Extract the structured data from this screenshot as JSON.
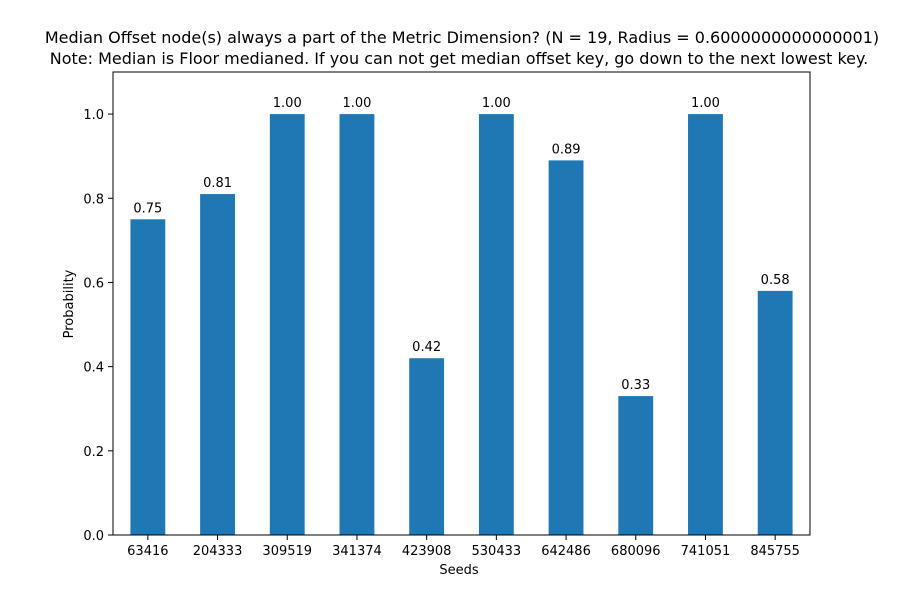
{
  "chart_data": {
    "type": "bar",
    "title": "Median Offset node(s) always a part of the Metric Dimension? (N = 19, Radius = 0.6000000000000001)",
    "subtitle": "Note: Median is Floor medianed. If you can not get median offset key, go down to the next lowest key.",
    "xlabel": "Seeds",
    "ylabel": "Probability",
    "categories": [
      "63416",
      "204333",
      "309519",
      "341374",
      "423908",
      "530433",
      "642486",
      "680096",
      "741051",
      "845755"
    ],
    "values": [
      0.75,
      0.81,
      1.0,
      1.0,
      0.42,
      1.0,
      0.89,
      0.33,
      1.0,
      0.58
    ],
    "value_labels": [
      "0.75",
      "0.81",
      "1.00",
      "1.00",
      "0.42",
      "1.00",
      "0.89",
      "0.33",
      "1.00",
      "0.58"
    ],
    "ylim": [
      0,
      1.1
    ],
    "yticks": [
      0.0,
      0.2,
      0.4,
      0.6,
      0.8,
      1.0
    ],
    "ytick_labels": [
      "0.0",
      "0.2",
      "0.4",
      "0.6",
      "0.8",
      "1.0"
    ],
    "bar_color": "#1f77b4",
    "grid": false,
    "legend": "none"
  }
}
